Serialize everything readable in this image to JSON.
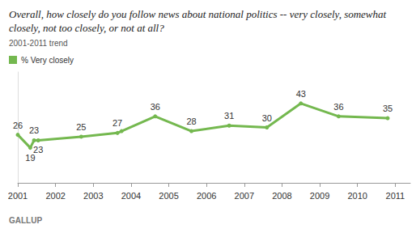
{
  "chart_data": {
    "type": "line",
    "title": "Overall, how closely do you follow news about national politics -- very closely, somewhat closely, not too closely, or not at all?",
    "subtitle": "2001-2011 trend",
    "source": "GALLUP",
    "x": [
      2001.0,
      2001.33,
      2001.43,
      2001.54,
      2002.68,
      2003.64,
      2003.75,
      2004.64,
      2005.6,
      2006.6,
      2007.6,
      2008.5,
      2009.5,
      2010.8
    ],
    "series": [
      {
        "name": "% Very closely",
        "color": "#74b84f",
        "marker": "circle",
        "line_style": "solid",
        "values": [
          26,
          19,
          23,
          23,
          25,
          27,
          28,
          36,
          28,
          31,
          30,
          43,
          36,
          35
        ],
        "value_labels": [
          "26",
          "19",
          "23",
          "23",
          "25",
          "27",
          null,
          "36",
          "28",
          "31",
          "30",
          "43",
          "36",
          "35"
        ]
      }
    ],
    "xlim": [
      2001,
      2011.4
    ],
    "xticks": [
      2001,
      2002,
      2003,
      2004,
      2005,
      2006,
      2007,
      2008,
      2009,
      2010,
      2011
    ],
    "ylim": [
      0,
      60
    ],
    "yticks": [],
    "grid": false,
    "legend": "top-left",
    "data_labels": true,
    "tick_labels": "x"
  }
}
